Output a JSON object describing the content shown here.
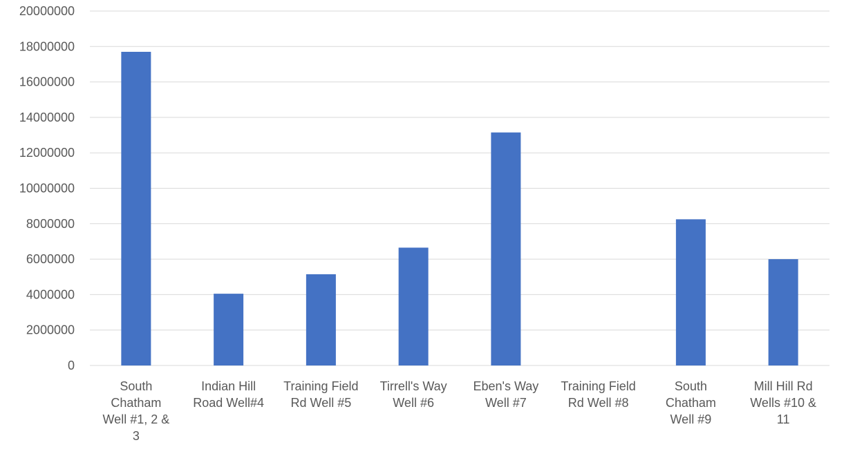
{
  "chart_data": {
    "type": "bar",
    "title": "",
    "xlabel": "",
    "ylabel": "",
    "ylim": [
      0,
      20000000
    ],
    "yticks": [
      0,
      2000000,
      4000000,
      6000000,
      8000000,
      10000000,
      12000000,
      14000000,
      16000000,
      18000000,
      20000000
    ],
    "ytick_labels": [
      "0",
      "2000000",
      "4000000",
      "6000000",
      "8000000",
      "10000000",
      "12000000",
      "14000000",
      "16000000",
      "18000000",
      "20000000"
    ],
    "grid": true,
    "legend": "none",
    "categories": [
      "South Chatham Well #1, 2 & 3",
      "Indian Hill Road Well#4",
      "Training Field Rd Well #5",
      "Tirrell's Way Well #6",
      "Eben's Way Well #7",
      "Training Field Rd Well #8",
      "South Chatham Well #9",
      "Mill Hill Rd Wells  #10 & 11"
    ],
    "category_lines": [
      [
        "South",
        "Chatham",
        "Well #1, 2 &",
        "3"
      ],
      [
        "Indian Hill",
        "Road Well#4"
      ],
      [
        "Training Field",
        "Rd Well #5"
      ],
      [
        "Tirrell's Way",
        "Well #6"
      ],
      [
        "Eben's Way",
        "Well #7"
      ],
      [
        "Training Field",
        "Rd Well #8"
      ],
      [
        "South",
        "Chatham",
        "Well #9"
      ],
      [
        "Mill Hill Rd",
        "Wells  #10 &",
        "11"
      ]
    ],
    "values": [
      17700000,
      4050000,
      5150000,
      6650000,
      13150000,
      0,
      8250000,
      6000000
    ],
    "colors": {
      "bar": "#4472C4",
      "grid": "#D9D9D9",
      "text": "#595959"
    }
  }
}
